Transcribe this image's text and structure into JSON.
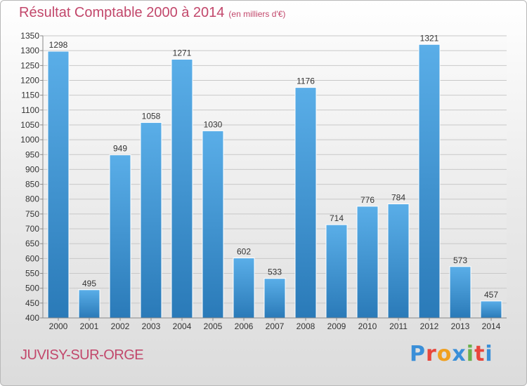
{
  "header": {
    "title": "Résultat Comptable 2000 à 2014",
    "unit": "(en milliers d'€)"
  },
  "footer": {
    "commune": "JUVISY-SUR-ORGE",
    "logo_letters": [
      "P",
      "r",
      "o",
      "x",
      "i",
      "t",
      "i"
    ],
    "logo_colors": [
      "#3a8fd8",
      "#e8463c",
      "#f0a020",
      "#3a8fd8",
      "#6ab04c",
      "#e8463c",
      "#3a8fd8"
    ]
  },
  "colors": {
    "title": "#c2476b",
    "bar_top": "#5aaee8",
    "bar_bottom": "#2a7ab8"
  },
  "chart_data": {
    "type": "bar",
    "title": "Résultat Comptable 2000 à 2014",
    "subtitle": "(en milliers d'€)",
    "xlabel": "",
    "ylabel": "",
    "categories": [
      "2000",
      "2001",
      "2002",
      "2003",
      "2004",
      "2005",
      "2006",
      "2007",
      "2008",
      "2009",
      "2010",
      "2011",
      "2012",
      "2013",
      "2014"
    ],
    "values": [
      1298,
      495,
      949,
      1058,
      1271,
      1030,
      602,
      533,
      1176,
      714,
      776,
      784,
      1321,
      573,
      457
    ],
    "ylim": [
      400,
      1350
    ],
    "yticks": [
      400,
      450,
      500,
      550,
      600,
      650,
      700,
      750,
      800,
      850,
      900,
      950,
      1000,
      1050,
      1100,
      1150,
      1200,
      1250,
      1300,
      1350
    ],
    "grid": true,
    "legend": "none"
  }
}
